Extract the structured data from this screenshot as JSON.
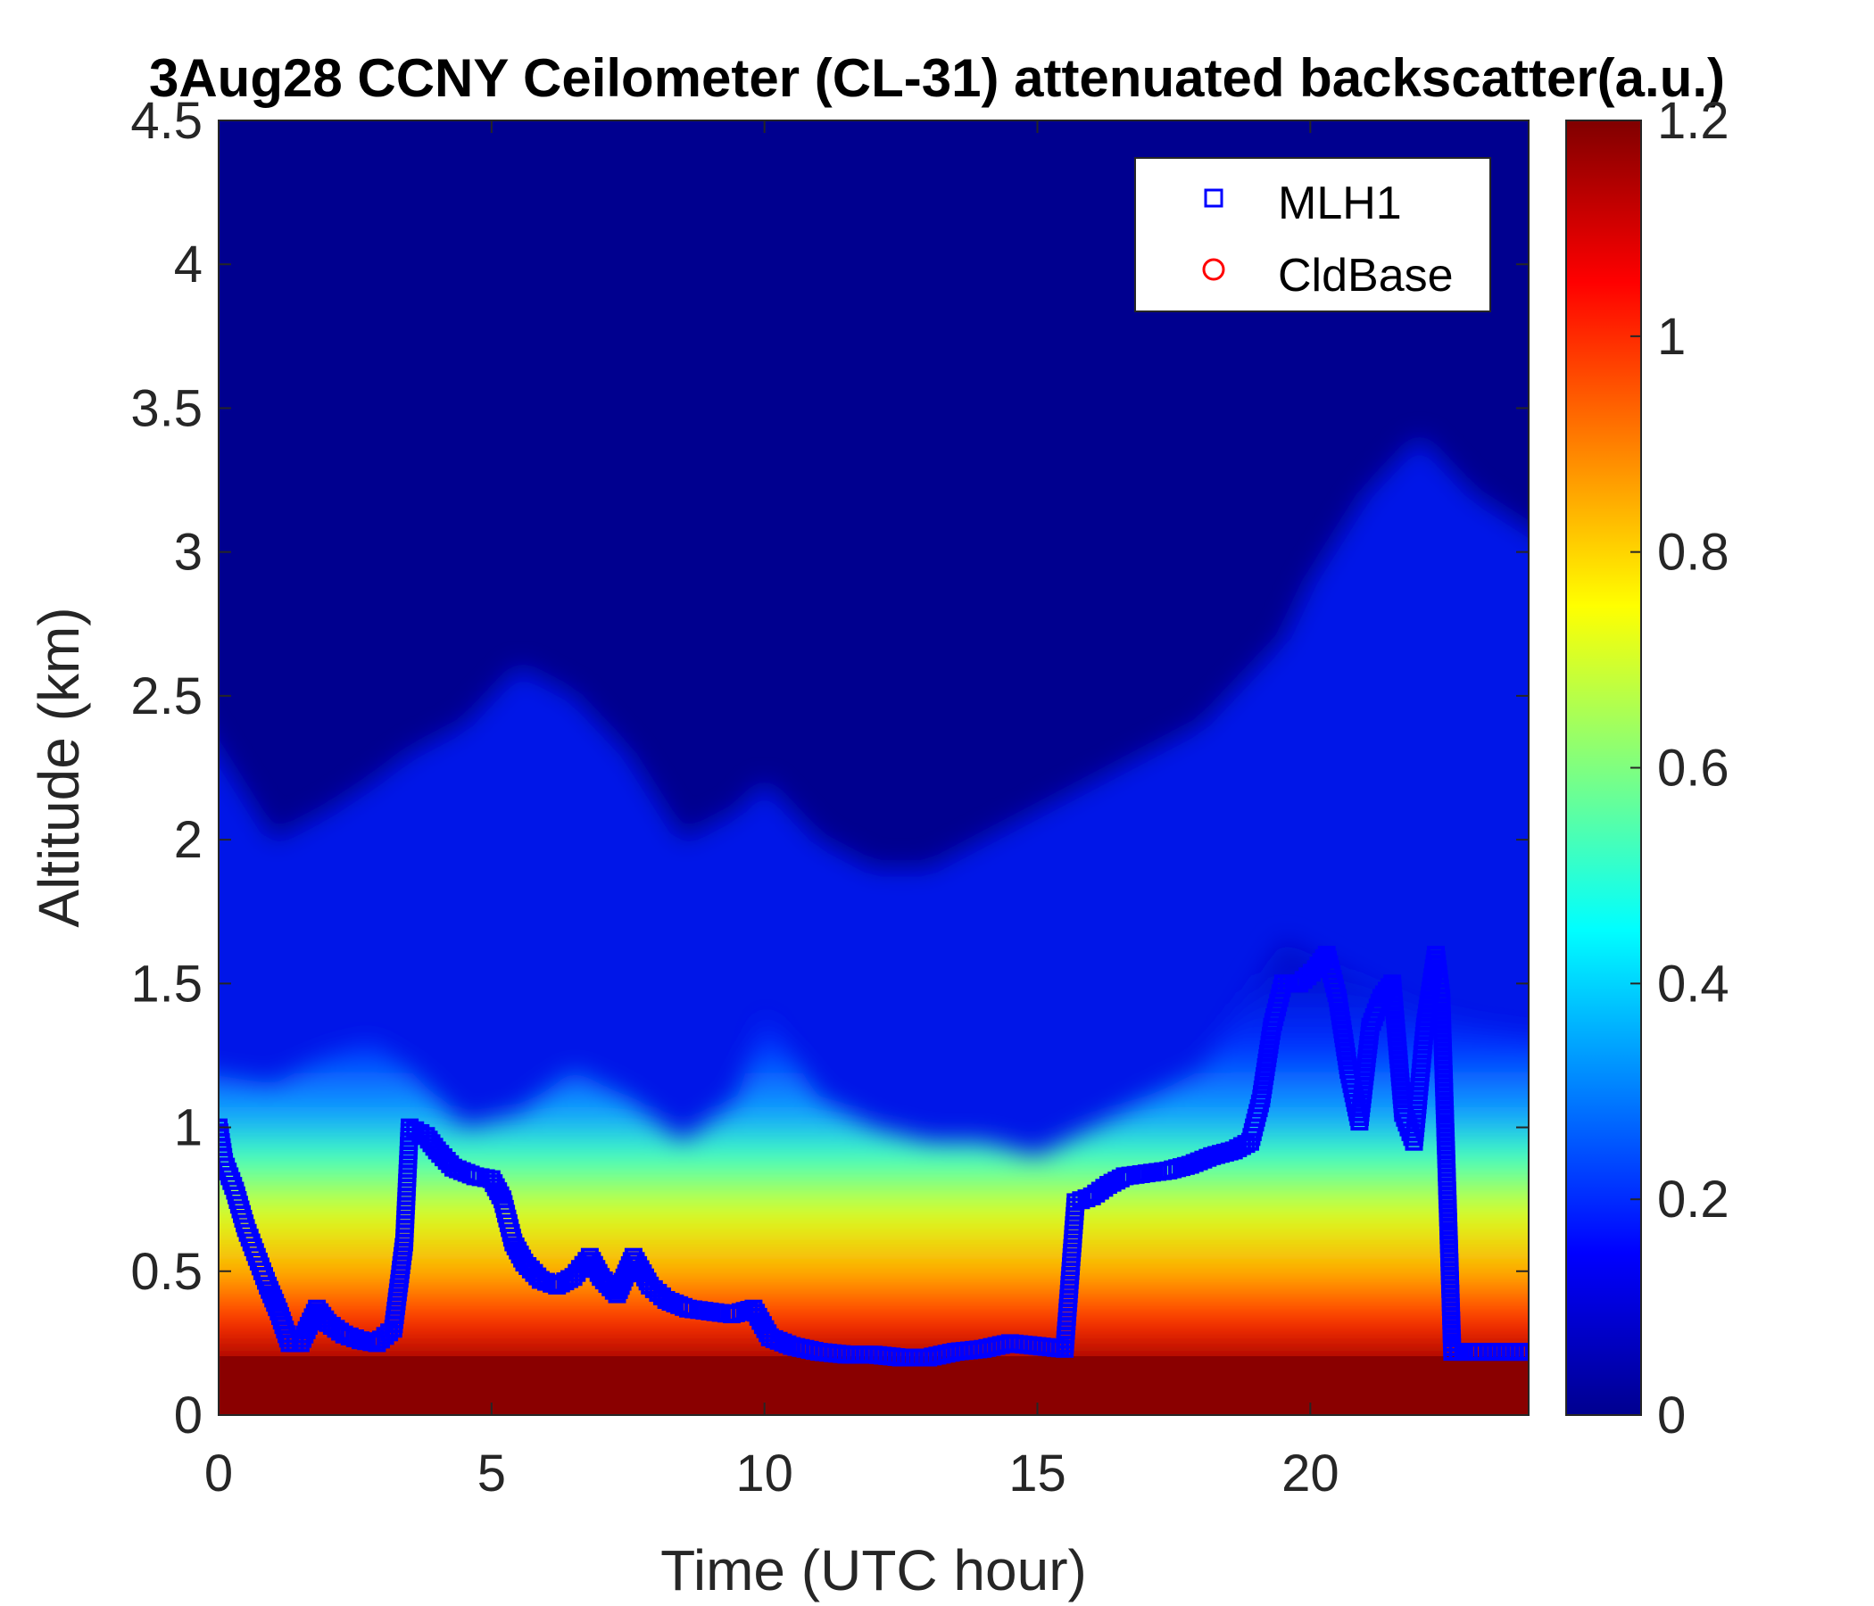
{
  "chart_data": {
    "type": "heatmap",
    "title": "3Aug28 CCNY Ceilometer (CL-31) attenuated backscatter(a.u.)",
    "xlabel": "Time (UTC hour)",
    "ylabel": "Altitude (km)",
    "xlim": [
      0,
      24
    ],
    "ylim": [
      0,
      4.5
    ],
    "xticks": [
      0,
      5,
      10,
      15,
      20
    ],
    "yticks": [
      0,
      0.5,
      1,
      1.5,
      2,
      2.5,
      3,
      3.5,
      4,
      4.5
    ],
    "colorbar": {
      "colormap": "jet",
      "range": [
        0,
        1.2
      ],
      "ticks": [
        0,
        0.2,
        0.4,
        0.6,
        0.8,
        1,
        1.2
      ]
    },
    "heatmap_profile": {
      "description_x": [
        0,
        1,
        2,
        2.8,
        3.5,
        4.5,
        5.5,
        6.5,
        7.5,
        8.5,
        9.5,
        10,
        11,
        12,
        13,
        14,
        15,
        16,
        17,
        18,
        19,
        19.5,
        20,
        21,
        22,
        23,
        24
      ],
      "aerosol_top_km": [
        1.2,
        1.15,
        1.25,
        1.3,
        1.2,
        1.0,
        1.05,
        1.2,
        1.1,
        0.95,
        1.1,
        1.4,
        1.1,
        1.0,
        0.95,
        0.95,
        0.9,
        1.0,
        1.1,
        1.2,
        1.5,
        1.65,
        1.6,
        1.5,
        1.4,
        1.35,
        1.3
      ],
      "background_top_km": [
        2.5,
        2.0,
        2.1,
        2.2,
        2.3,
        2.4,
        2.6,
        2.5,
        2.3,
        2.0,
        2.1,
        2.2,
        2.0,
        1.9,
        1.9,
        2.0,
        2.1,
        2.2,
        2.3,
        2.4,
        2.6,
        2.7,
        2.9,
        3.2,
        3.4,
        3.2,
        3.0
      ]
    },
    "series": [
      {
        "name": "MLH1",
        "marker": "square",
        "color": "#0000ff",
        "x": [
          0,
          0.1,
          0.3,
          0.5,
          0.7,
          0.9,
          1.1,
          1.3,
          1.5,
          1.8,
          2.0,
          2.3,
          2.6,
          2.9,
          3.2,
          3.4,
          3.5,
          3.6,
          3.8,
          4.0,
          4.3,
          4.7,
          5.0,
          5.2,
          5.4,
          5.6,
          5.9,
          6.2,
          6.5,
          6.8,
          7.0,
          7.3,
          7.6,
          7.9,
          8.2,
          8.6,
          9.0,
          9.4,
          9.8,
          10.1,
          10.5,
          11.0,
          11.5,
          12.0,
          12.5,
          13.0,
          13.5,
          14.0,
          14.5,
          15.0,
          15.5,
          15.7,
          16.0,
          16.3,
          16.6,
          17.0,
          17.4,
          17.8,
          18.2,
          18.6,
          18.9,
          19.1,
          19.3,
          19.5,
          19.8,
          20.1,
          20.3,
          20.5,
          20.7,
          20.9,
          21.1,
          21.3,
          21.5,
          21.7,
          21.9,
          22.1,
          22.3,
          22.4,
          22.6,
          23.0,
          23.5,
          24.0
        ],
        "y": [
          1.0,
          0.88,
          0.78,
          0.65,
          0.55,
          0.45,
          0.36,
          0.25,
          0.25,
          0.37,
          0.32,
          0.28,
          0.26,
          0.25,
          0.3,
          0.6,
          1.0,
          0.99,
          0.97,
          0.92,
          0.86,
          0.83,
          0.82,
          0.75,
          0.6,
          0.53,
          0.47,
          0.45,
          0.48,
          0.55,
          0.48,
          0.42,
          0.55,
          0.45,
          0.4,
          0.37,
          0.36,
          0.35,
          0.37,
          0.27,
          0.24,
          0.22,
          0.21,
          0.21,
          0.2,
          0.2,
          0.22,
          0.23,
          0.25,
          0.24,
          0.23,
          0.74,
          0.76,
          0.8,
          0.83,
          0.84,
          0.85,
          0.87,
          0.9,
          0.92,
          0.95,
          1.1,
          1.35,
          1.5,
          1.5,
          1.55,
          1.6,
          1.45,
          1.2,
          1.02,
          1.35,
          1.45,
          1.5,
          1.05,
          0.95,
          1.35,
          1.6,
          1.45,
          0.22,
          0.22,
          0.22,
          0.22
        ]
      },
      {
        "name": "CldBase",
        "marker": "circle",
        "color": "#ff0000",
        "x": [],
        "y": []
      }
    ],
    "legend": {
      "position": "top-right",
      "entries": [
        {
          "name": "MLH1",
          "marker": "square",
          "color": "#0000ff"
        },
        {
          "name": "CldBase",
          "marker": "circle",
          "color": "#ff0000"
        }
      ]
    },
    "grid": false
  }
}
